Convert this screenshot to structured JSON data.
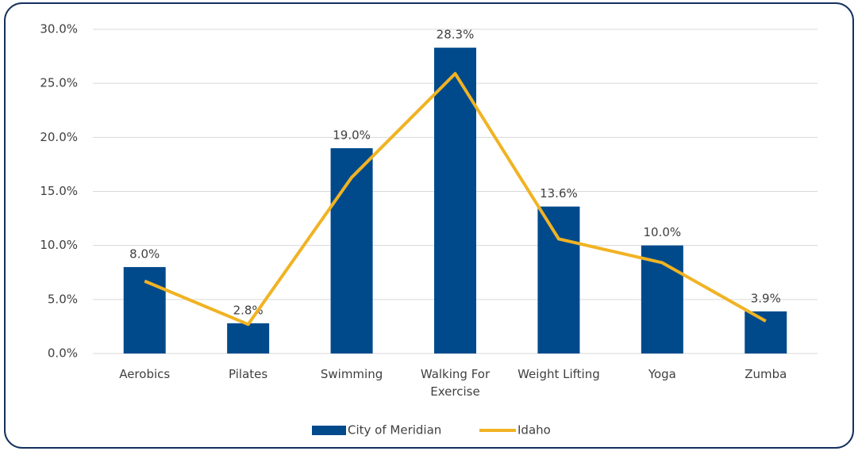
{
  "chart_data": {
    "type": "bar",
    "categories": [
      "Aerobics",
      "Pilates",
      "Swimming",
      "Walking For Exercise",
      "Weight Lifting",
      "Yoga",
      "Zumba"
    ],
    "series": [
      {
        "name": "City of Meridian",
        "type": "bar",
        "color": "#004a8c",
        "values": [
          8.0,
          2.8,
          19.0,
          28.3,
          13.6,
          10.0,
          3.9
        ],
        "value_labels": [
          "8.0%",
          "2.8%",
          "19.0%",
          "28.3%",
          "13.6%",
          "10.0%",
          "3.9%"
        ]
      },
      {
        "name": "Idaho",
        "type": "line",
        "color": "#f0b323",
        "values": [
          6.7,
          2.7,
          16.3,
          25.9,
          10.6,
          8.4,
          3.0
        ]
      }
    ],
    "ylim": [
      0,
      30
    ],
    "yticks": [
      {
        "value": 0,
        "label": "0.0%"
      },
      {
        "value": 5,
        "label": "5.0%"
      },
      {
        "value": 10,
        "label": "10.0%"
      },
      {
        "value": 15,
        "label": "15.0%"
      },
      {
        "value": 20,
        "label": "20.0%"
      },
      {
        "value": 25,
        "label": "25.0%"
      },
      {
        "value": 30,
        "label": "30.0%"
      }
    ],
    "grid": true,
    "legend": "bottom"
  }
}
